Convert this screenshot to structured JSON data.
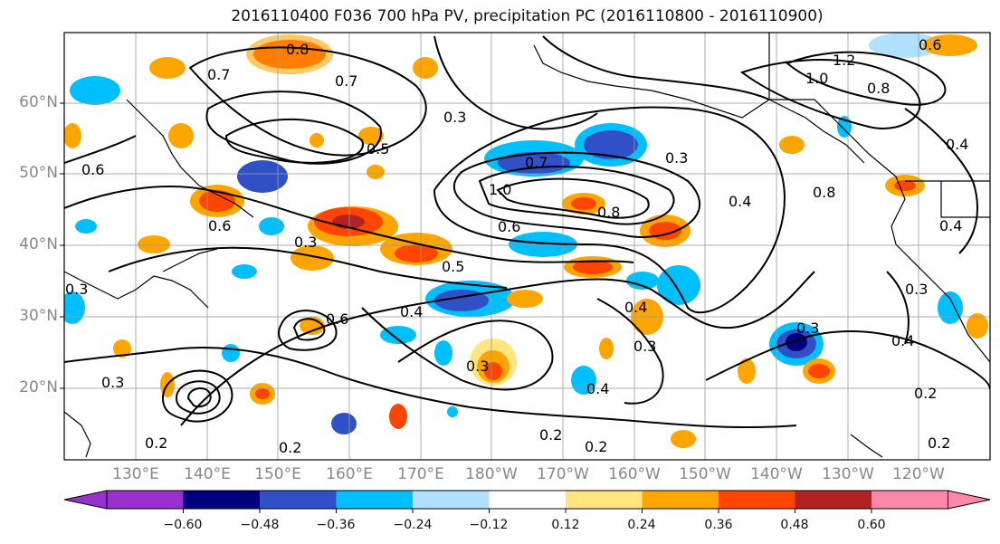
{
  "title": "2016110400 F036 700 hPa PV, precipitation PC (2016110800 - 2016110900)",
  "lat_labels": [
    "60°N",
    "50°N",
    "40°N",
    "30°N",
    "20°N"
  ],
  "lon_labels": [
    "130°E",
    "140°E",
    "150°E",
    "160°E",
    "170°E",
    "180°W",
    "170°W",
    "160°W",
    "150°W",
    "140°W",
    "130°W",
    "120°W"
  ],
  "colorbar": {
    "ticks": [
      "−0.60",
      "−0.48",
      "−0.36",
      "−0.24",
      "−0.12",
      "0.12",
      "0.24",
      "0.36",
      "0.48",
      "0.60"
    ],
    "colors": [
      "#9b30d0",
      "#000080",
      "#3050c8",
      "#00bfff",
      "#b0e2ff",
      "#ffffff",
      "#ffe680",
      "#ffa500",
      "#ff4500",
      "#b22222",
      "#ff88aa"
    ]
  },
  "contour_labels": [
    "0.8",
    "0.7",
    "0.7",
    "0.6",
    "0.5",
    "0.3",
    "0.4",
    "0.3",
    "0.7",
    "1.0",
    "0.6",
    "0.8",
    "0.3",
    "0.4",
    "0.8",
    "1.2",
    "1.0",
    "0.8",
    "0.6",
    "0.4",
    "0.6",
    "0.3",
    "0.5",
    "0.4",
    "0.4",
    "0.3",
    "0.2",
    "0.4",
    "0.3",
    "0.2",
    "0.2",
    "0.2",
    "0.4",
    "0.3",
    "0.2",
    "0.2",
    "0.3",
    "0.3",
    "0.6"
  ]
}
